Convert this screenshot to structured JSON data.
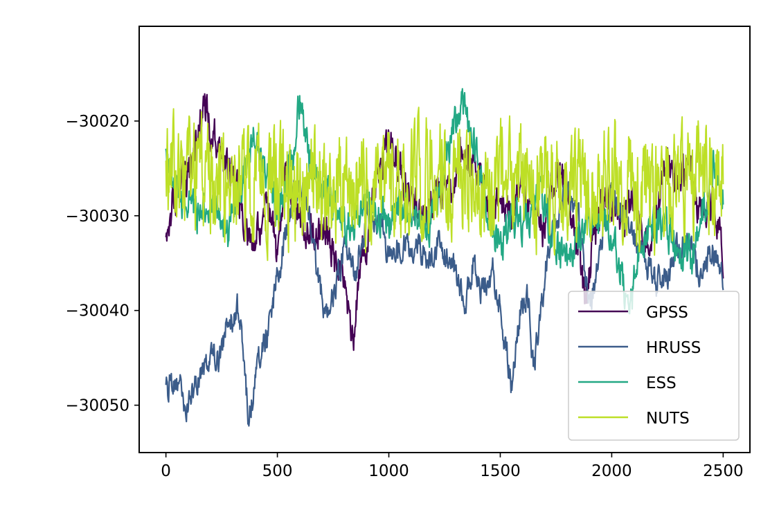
{
  "chart_data": {
    "type": "line",
    "title": "",
    "xlabel": "",
    "ylabel": "",
    "xlim": [
      -120,
      2620
    ],
    "ylim": [
      -30055,
      -30010
    ],
    "xticks": [
      0,
      500,
      1000,
      1500,
      2000,
      2500
    ],
    "yticks": [
      -30050,
      -30040,
      -30030,
      -30020
    ],
    "xtick_labels": [
      "0",
      "500",
      "1000",
      "1500",
      "2000",
      "2500"
    ],
    "ytick_labels": [
      "−30050",
      "−30040",
      "−30030",
      "−30020"
    ],
    "grid": false,
    "legend_position": "lower-right",
    "n_steps": 2500,
    "series": [
      {
        "name": "GPSS",
        "color": "#440154",
        "width": 2.2,
        "jitter": 1.6,
        "anchors": [
          [
            0,
            -30031
          ],
          [
            40,
            -30028
          ],
          [
            100,
            -30026
          ],
          [
            170,
            -30018
          ],
          [
            200,
            -30021
          ],
          [
            260,
            -30024
          ],
          [
            320,
            -30027
          ],
          [
            380,
            -30033
          ],
          [
            450,
            -30029
          ],
          [
            500,
            -30034
          ],
          [
            540,
            -30026
          ],
          [
            600,
            -30030
          ],
          [
            660,
            -30032
          ],
          [
            720,
            -30031
          ],
          [
            760,
            -30035
          ],
          [
            800,
            -30037
          ],
          [
            840,
            -30043
          ],
          [
            880,
            -30035
          ],
          [
            950,
            -30025
          ],
          [
            1000,
            -30022
          ],
          [
            1080,
            -30027
          ],
          [
            1150,
            -30030
          ],
          [
            1200,
            -30028
          ],
          [
            1280,
            -30027
          ],
          [
            1320,
            -30024
          ],
          [
            1400,
            -30025
          ],
          [
            1450,
            -30030
          ],
          [
            1500,
            -30028
          ],
          [
            1550,
            -30030
          ],
          [
            1600,
            -30027
          ],
          [
            1650,
            -30029
          ],
          [
            1700,
            -30032
          ],
          [
            1750,
            -30025
          ],
          [
            1800,
            -30027
          ],
          [
            1850,
            -30033
          ],
          [
            1880,
            -30040
          ],
          [
            1920,
            -30032
          ],
          [
            1980,
            -30028
          ],
          [
            2050,
            -30031
          ],
          [
            2100,
            -30028
          ],
          [
            2150,
            -30033
          ],
          [
            2200,
            -30030
          ],
          [
            2250,
            -30024
          ],
          [
            2300,
            -30027
          ],
          [
            2350,
            -30025
          ],
          [
            2400,
            -30030
          ],
          [
            2450,
            -30029
          ],
          [
            2500,
            -30034
          ]
        ]
      },
      {
        "name": "HRUSS",
        "color": "#3b5c8a",
        "width": 2.2,
        "jitter": 1.2,
        "anchors": [
          [
            0,
            -30049
          ],
          [
            30,
            -30047
          ],
          [
            60,
            -30048
          ],
          [
            90,
            -30051
          ],
          [
            120,
            -30048
          ],
          [
            160,
            -30047
          ],
          [
            200,
            -30044
          ],
          [
            240,
            -30045
          ],
          [
            280,
            -30041
          ],
          [
            320,
            -30040
          ],
          [
            350,
            -30044
          ],
          [
            370,
            -30052
          ],
          [
            400,
            -30047
          ],
          [
            430,
            -30044
          ],
          [
            460,
            -30042
          ],
          [
            490,
            -30038
          ],
          [
            520,
            -30034
          ],
          [
            560,
            -30029
          ],
          [
            600,
            -30027
          ],
          [
            640,
            -30029
          ],
          [
            680,
            -30036
          ],
          [
            720,
            -30041
          ],
          [
            760,
            -30038
          ],
          [
            800,
            -30033
          ],
          [
            850,
            -30036
          ],
          [
            900,
            -30030
          ],
          [
            960,
            -30031
          ],
          [
            1000,
            -30034
          ],
          [
            1060,
            -30033
          ],
          [
            1120,
            -30033
          ],
          [
            1180,
            -30035
          ],
          [
            1220,
            -30033
          ],
          [
            1260,
            -30034
          ],
          [
            1300,
            -30036
          ],
          [
            1340,
            -30039
          ],
          [
            1380,
            -30035
          ],
          [
            1420,
            -30038
          ],
          [
            1470,
            -30036
          ],
          [
            1520,
            -30043
          ],
          [
            1550,
            -30048
          ],
          [
            1580,
            -30041
          ],
          [
            1620,
            -30038
          ],
          [
            1650,
            -30046
          ],
          [
            1680,
            -30040
          ],
          [
            1720,
            -30033
          ],
          [
            1760,
            -30030
          ],
          [
            1800,
            -30027
          ],
          [
            1850,
            -30030
          ],
          [
            1900,
            -30040
          ],
          [
            1950,
            -30033
          ],
          [
            2000,
            -30027
          ],
          [
            2050,
            -30030
          ],
          [
            2100,
            -30032
          ],
          [
            2150,
            -30035
          ],
          [
            2200,
            -30037
          ],
          [
            2250,
            -30036
          ],
          [
            2300,
            -30033
          ],
          [
            2350,
            -30033
          ],
          [
            2400,
            -30036
          ],
          [
            2450,
            -30034
          ],
          [
            2500,
            -30036
          ]
        ]
      },
      {
        "name": "ESS",
        "color": "#22a884",
        "width": 2.2,
        "jitter": 1.6,
        "anchors": [
          [
            0,
            -30024
          ],
          [
            40,
            -30027
          ],
          [
            100,
            -30029
          ],
          [
            160,
            -30030
          ],
          [
            220,
            -30029
          ],
          [
            280,
            -30032
          ],
          [
            340,
            -30027
          ],
          [
            390,
            -30021
          ],
          [
            440,
            -30025
          ],
          [
            500,
            -30030
          ],
          [
            560,
            -30025
          ],
          [
            600,
            -30018
          ],
          [
            650,
            -30025
          ],
          [
            700,
            -30027
          ],
          [
            760,
            -30029
          ],
          [
            820,
            -30031
          ],
          [
            880,
            -30029
          ],
          [
            940,
            -30030
          ],
          [
            1000,
            -30031
          ],
          [
            1060,
            -30029
          ],
          [
            1120,
            -30030
          ],
          [
            1180,
            -30031
          ],
          [
            1240,
            -30026
          ],
          [
            1300,
            -30020
          ],
          [
            1340,
            -30018
          ],
          [
            1400,
            -30024
          ],
          [
            1450,
            -30030
          ],
          [
            1500,
            -30033
          ],
          [
            1560,
            -30030
          ],
          [
            1620,
            -30031
          ],
          [
            1680,
            -30027
          ],
          [
            1740,
            -30033
          ],
          [
            1800,
            -30035
          ],
          [
            1860,
            -30032
          ],
          [
            1920,
            -30030
          ],
          [
            1980,
            -30031
          ],
          [
            2040,
            -30035
          ],
          [
            2080,
            -30041
          ],
          [
            2120,
            -30034
          ],
          [
            2180,
            -30030
          ],
          [
            2240,
            -30031
          ],
          [
            2300,
            -30033
          ],
          [
            2360,
            -30035
          ],
          [
            2420,
            -30029
          ],
          [
            2460,
            -30024
          ],
          [
            2500,
            -30028
          ]
        ]
      },
      {
        "name": "NUTS",
        "color": "#bddf26",
        "width": 2.0,
        "jitter": 4.5,
        "anchors": [
          [
            0,
            -30026
          ],
          [
            200,
            -30026
          ],
          [
            400,
            -30027
          ],
          [
            600,
            -30027
          ],
          [
            800,
            -30027
          ],
          [
            1000,
            -30026
          ],
          [
            1200,
            -30026
          ],
          [
            1400,
            -30026
          ],
          [
            1600,
            -30027
          ],
          [
            1800,
            -30027
          ],
          [
            2000,
            -30026
          ],
          [
            2200,
            -30027
          ],
          [
            2400,
            -30026
          ],
          [
            2500,
            -30026
          ]
        ]
      }
    ]
  }
}
